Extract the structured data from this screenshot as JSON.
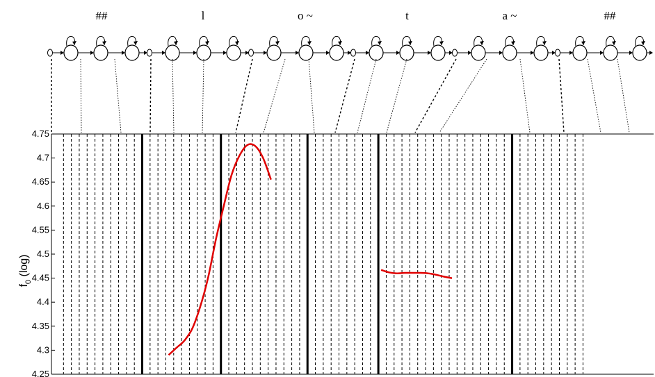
{
  "chart_data": {
    "type": "line",
    "title": "",
    "xlabel": "",
    "ylabel": "f",
    "ylabel_subscript": "0",
    "ylabel_suffix": " (log)",
    "ylim": [
      4.25,
      4.75
    ],
    "yticks": [
      "4.25",
      "4.3",
      "4.35",
      "4.4",
      "4.45",
      "4.5",
      "4.55",
      "4.6",
      "4.65",
      "4.7",
      "4.75"
    ],
    "grid": "dashed vertical frame lines, solid vertical phone boundaries",
    "line_color": "#e00000",
    "phones": [
      {
        "label": "##",
        "frames": 11
      },
      {
        "label": "l",
        "frames": 10
      },
      {
        "label": "o ~",
        "frames": 11
      },
      {
        "label": "t",
        "frames": 9
      },
      {
        "label": "a ~",
        "frames": 17
      },
      {
        "label": "##",
        "frames": 10
      }
    ],
    "series": [
      {
        "segment": 1,
        "points": [
          [
            2,
            4.29
          ],
          [
            3,
            4.305
          ],
          [
            4,
            4.32
          ],
          [
            5,
            4.345
          ],
          [
            6,
            4.39
          ],
          [
            7,
            4.45
          ],
          [
            8,
            4.53
          ],
          [
            9,
            4.6
          ],
          [
            10,
            4.665
          ],
          [
            11,
            4.705
          ],
          [
            12,
            4.727
          ],
          [
            13,
            4.725
          ],
          [
            14,
            4.7
          ],
          [
            15,
            4.655
          ]
        ]
      },
      {
        "segment": 2,
        "points": [
          [
            25,
            4.467
          ],
          [
            26,
            4.462
          ],
          [
            27,
            4.46
          ],
          [
            28,
            4.461
          ],
          [
            29,
            4.461
          ],
          [
            30,
            4.461
          ],
          [
            31,
            4.46
          ],
          [
            32,
            4.457
          ],
          [
            33,
            4.453
          ],
          [
            34,
            4.45
          ]
        ]
      }
    ]
  }
}
